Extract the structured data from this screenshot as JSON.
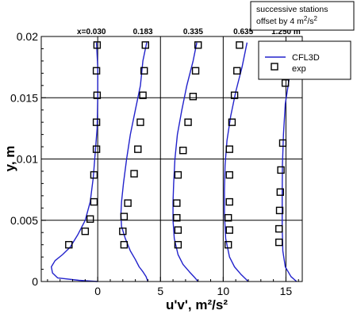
{
  "note": {
    "line1": "successive stations",
    "line2_prefix": "offset by 4 m",
    "line2_sup": "2",
    "line2_mid": "/s",
    "line2_sup2": "2"
  },
  "chart_data": {
    "type": "line",
    "xlabel": "u'v', m²/s²",
    "ylabel": "y, m",
    "xlim": [
      -4.5,
      16.3
    ],
    "ylim": [
      0,
      0.02
    ],
    "x_ticks": [
      0,
      5,
      10,
      15
    ],
    "y_ticks": [
      0,
      0.005,
      0.01,
      0.015,
      0.02
    ],
    "y_tick_labels": [
      "0",
      "0.005",
      "0.01",
      "0.015",
      "0.02"
    ],
    "grid": true,
    "legend_position": "top-right",
    "legend": [
      {
        "label": "CFL3D",
        "style": "line",
        "color": "#2222cc"
      },
      {
        "label": "exp",
        "style": "open-square",
        "color": "#000000"
      }
    ],
    "stations": [
      {
        "label": "x=0.030",
        "offset": 0
      },
      {
        "label": "0.183",
        "offset": 4
      },
      {
        "label": "0.335",
        "offset": 8
      },
      {
        "label": "0.635",
        "offset": 12
      },
      {
        "label": "1.250 m",
        "offset": 16
      }
    ],
    "series": [
      {
        "name": "CFL3D",
        "station": "x=0.030",
        "points": [
          [
            -0.1,
            0.0195
          ],
          [
            0.0,
            0.0175
          ],
          [
            0.0,
            0.015
          ],
          [
            -0.05,
            0.0125
          ],
          [
            -0.2,
            0.0105
          ],
          [
            -0.35,
            0.0085
          ],
          [
            -0.6,
            0.0065
          ],
          [
            -1.0,
            0.005
          ],
          [
            -1.6,
            0.0038
          ],
          [
            -2.2,
            0.0028
          ],
          [
            -2.8,
            0.0022
          ],
          [
            -3.4,
            0.0017
          ],
          [
            -3.7,
            0.0012
          ],
          [
            -3.6,
            0.0007
          ],
          [
            -3.2,
            0.0003
          ],
          [
            -1.5,
            0.0001
          ],
          [
            0.0,
            0.0
          ]
        ]
      },
      {
        "name": "CFL3D",
        "station": "0.183",
        "points": [
          [
            3.9,
            0.0195
          ],
          [
            3.6,
            0.018
          ],
          [
            3.4,
            0.016
          ],
          [
            3.0,
            0.014
          ],
          [
            2.6,
            0.012
          ],
          [
            2.3,
            0.01
          ],
          [
            2.05,
            0.008
          ],
          [
            1.9,
            0.0065
          ],
          [
            1.85,
            0.0055
          ],
          [
            1.9,
            0.0045
          ],
          [
            2.2,
            0.0035
          ],
          [
            2.6,
            0.0025
          ],
          [
            3.0,
            0.0018
          ],
          [
            3.3,
            0.0012
          ],
          [
            3.6,
            0.0008
          ],
          [
            3.85,
            0.0004
          ],
          [
            4.0,
            0.0
          ]
        ]
      },
      {
        "name": "CFL3D",
        "station": "0.335",
        "points": [
          [
            7.9,
            0.0195
          ],
          [
            7.6,
            0.018
          ],
          [
            7.1,
            0.016
          ],
          [
            6.7,
            0.014
          ],
          [
            6.35,
            0.012
          ],
          [
            6.15,
            0.01
          ],
          [
            6.05,
            0.008
          ],
          [
            6.0,
            0.0065
          ],
          [
            6.0,
            0.005
          ],
          [
            6.1,
            0.0035
          ],
          [
            6.4,
            0.0022
          ],
          [
            6.8,
            0.0014
          ],
          [
            7.3,
            0.0008
          ],
          [
            7.75,
            0.0003
          ],
          [
            8.0,
            0.0
          ]
        ]
      },
      {
        "name": "CFL3D",
        "station": "0.635",
        "points": [
          [
            11.9,
            0.0195
          ],
          [
            11.5,
            0.0175
          ],
          [
            11.0,
            0.0155
          ],
          [
            10.6,
            0.0135
          ],
          [
            10.3,
            0.0115
          ],
          [
            10.15,
            0.0095
          ],
          [
            10.1,
            0.0075
          ],
          [
            10.1,
            0.0055
          ],
          [
            10.2,
            0.0035
          ],
          [
            10.5,
            0.002
          ],
          [
            10.9,
            0.0012
          ],
          [
            11.4,
            0.0006
          ],
          [
            11.8,
            0.0002
          ],
          [
            12.0,
            0.0
          ]
        ]
      },
      {
        "name": "CFL3D",
        "station": "1.250 m",
        "points": [
          [
            15.85,
            0.0195
          ],
          [
            15.6,
            0.018
          ],
          [
            15.25,
            0.0165
          ],
          [
            14.95,
            0.0145
          ],
          [
            14.8,
            0.012
          ],
          [
            14.72,
            0.0095
          ],
          [
            14.7,
            0.007
          ],
          [
            14.7,
            0.0045
          ],
          [
            14.75,
            0.0025
          ],
          [
            14.95,
            0.0012
          ],
          [
            15.4,
            0.0004
          ],
          [
            15.85,
            0.0
          ]
        ]
      },
      {
        "name": "exp",
        "station": "x=0.030",
        "points": [
          [
            -0.05,
            0.0193
          ],
          [
            -0.1,
            0.0172
          ],
          [
            -0.05,
            0.0152
          ],
          [
            -0.1,
            0.013
          ],
          [
            -0.1,
            0.0108
          ],
          [
            -0.3,
            0.0087
          ],
          [
            -0.3,
            0.0065
          ],
          [
            -0.6,
            0.0051
          ],
          [
            -1.0,
            0.0041
          ],
          [
            -2.3,
            0.003
          ]
        ]
      },
      {
        "name": "exp",
        "station": "0.183",
        "points": [
          [
            3.8,
            0.0193
          ],
          [
            3.7,
            0.0172
          ],
          [
            3.6,
            0.0152
          ],
          [
            3.4,
            0.013
          ],
          [
            3.2,
            0.0108
          ],
          [
            2.9,
            0.0088
          ],
          [
            2.4,
            0.0064
          ],
          [
            2.1,
            0.0053
          ],
          [
            2.0,
            0.0041
          ],
          [
            2.1,
            0.003
          ]
        ]
      },
      {
        "name": "exp",
        "station": "0.335",
        "points": [
          [
            8.0,
            0.0193
          ],
          [
            7.8,
            0.0172
          ],
          [
            7.6,
            0.0151
          ],
          [
            7.2,
            0.013
          ],
          [
            6.8,
            0.0107
          ],
          [
            6.4,
            0.0087
          ],
          [
            6.3,
            0.0064
          ],
          [
            6.3,
            0.0052
          ],
          [
            6.4,
            0.0042
          ],
          [
            6.4,
            0.003
          ]
        ]
      },
      {
        "name": "exp",
        "station": "0.635",
        "points": [
          [
            11.3,
            0.0193
          ],
          [
            11.1,
            0.0172
          ],
          [
            10.9,
            0.0152
          ],
          [
            10.7,
            0.013
          ],
          [
            10.5,
            0.0108
          ],
          [
            10.5,
            0.0087
          ],
          [
            10.5,
            0.0065
          ],
          [
            10.4,
            0.0052
          ],
          [
            10.5,
            0.0042
          ],
          [
            10.4,
            0.003
          ]
        ]
      },
      {
        "name": "exp",
        "station": "1.250 m",
        "points": [
          [
            15.1,
            0.0193
          ],
          [
            14.95,
            0.0162
          ],
          [
            14.75,
            0.0113
          ],
          [
            14.6,
            0.0091
          ],
          [
            14.55,
            0.0073
          ],
          [
            14.5,
            0.0058
          ],
          [
            14.45,
            0.0043
          ],
          [
            14.45,
            0.0032
          ]
        ]
      }
    ]
  }
}
